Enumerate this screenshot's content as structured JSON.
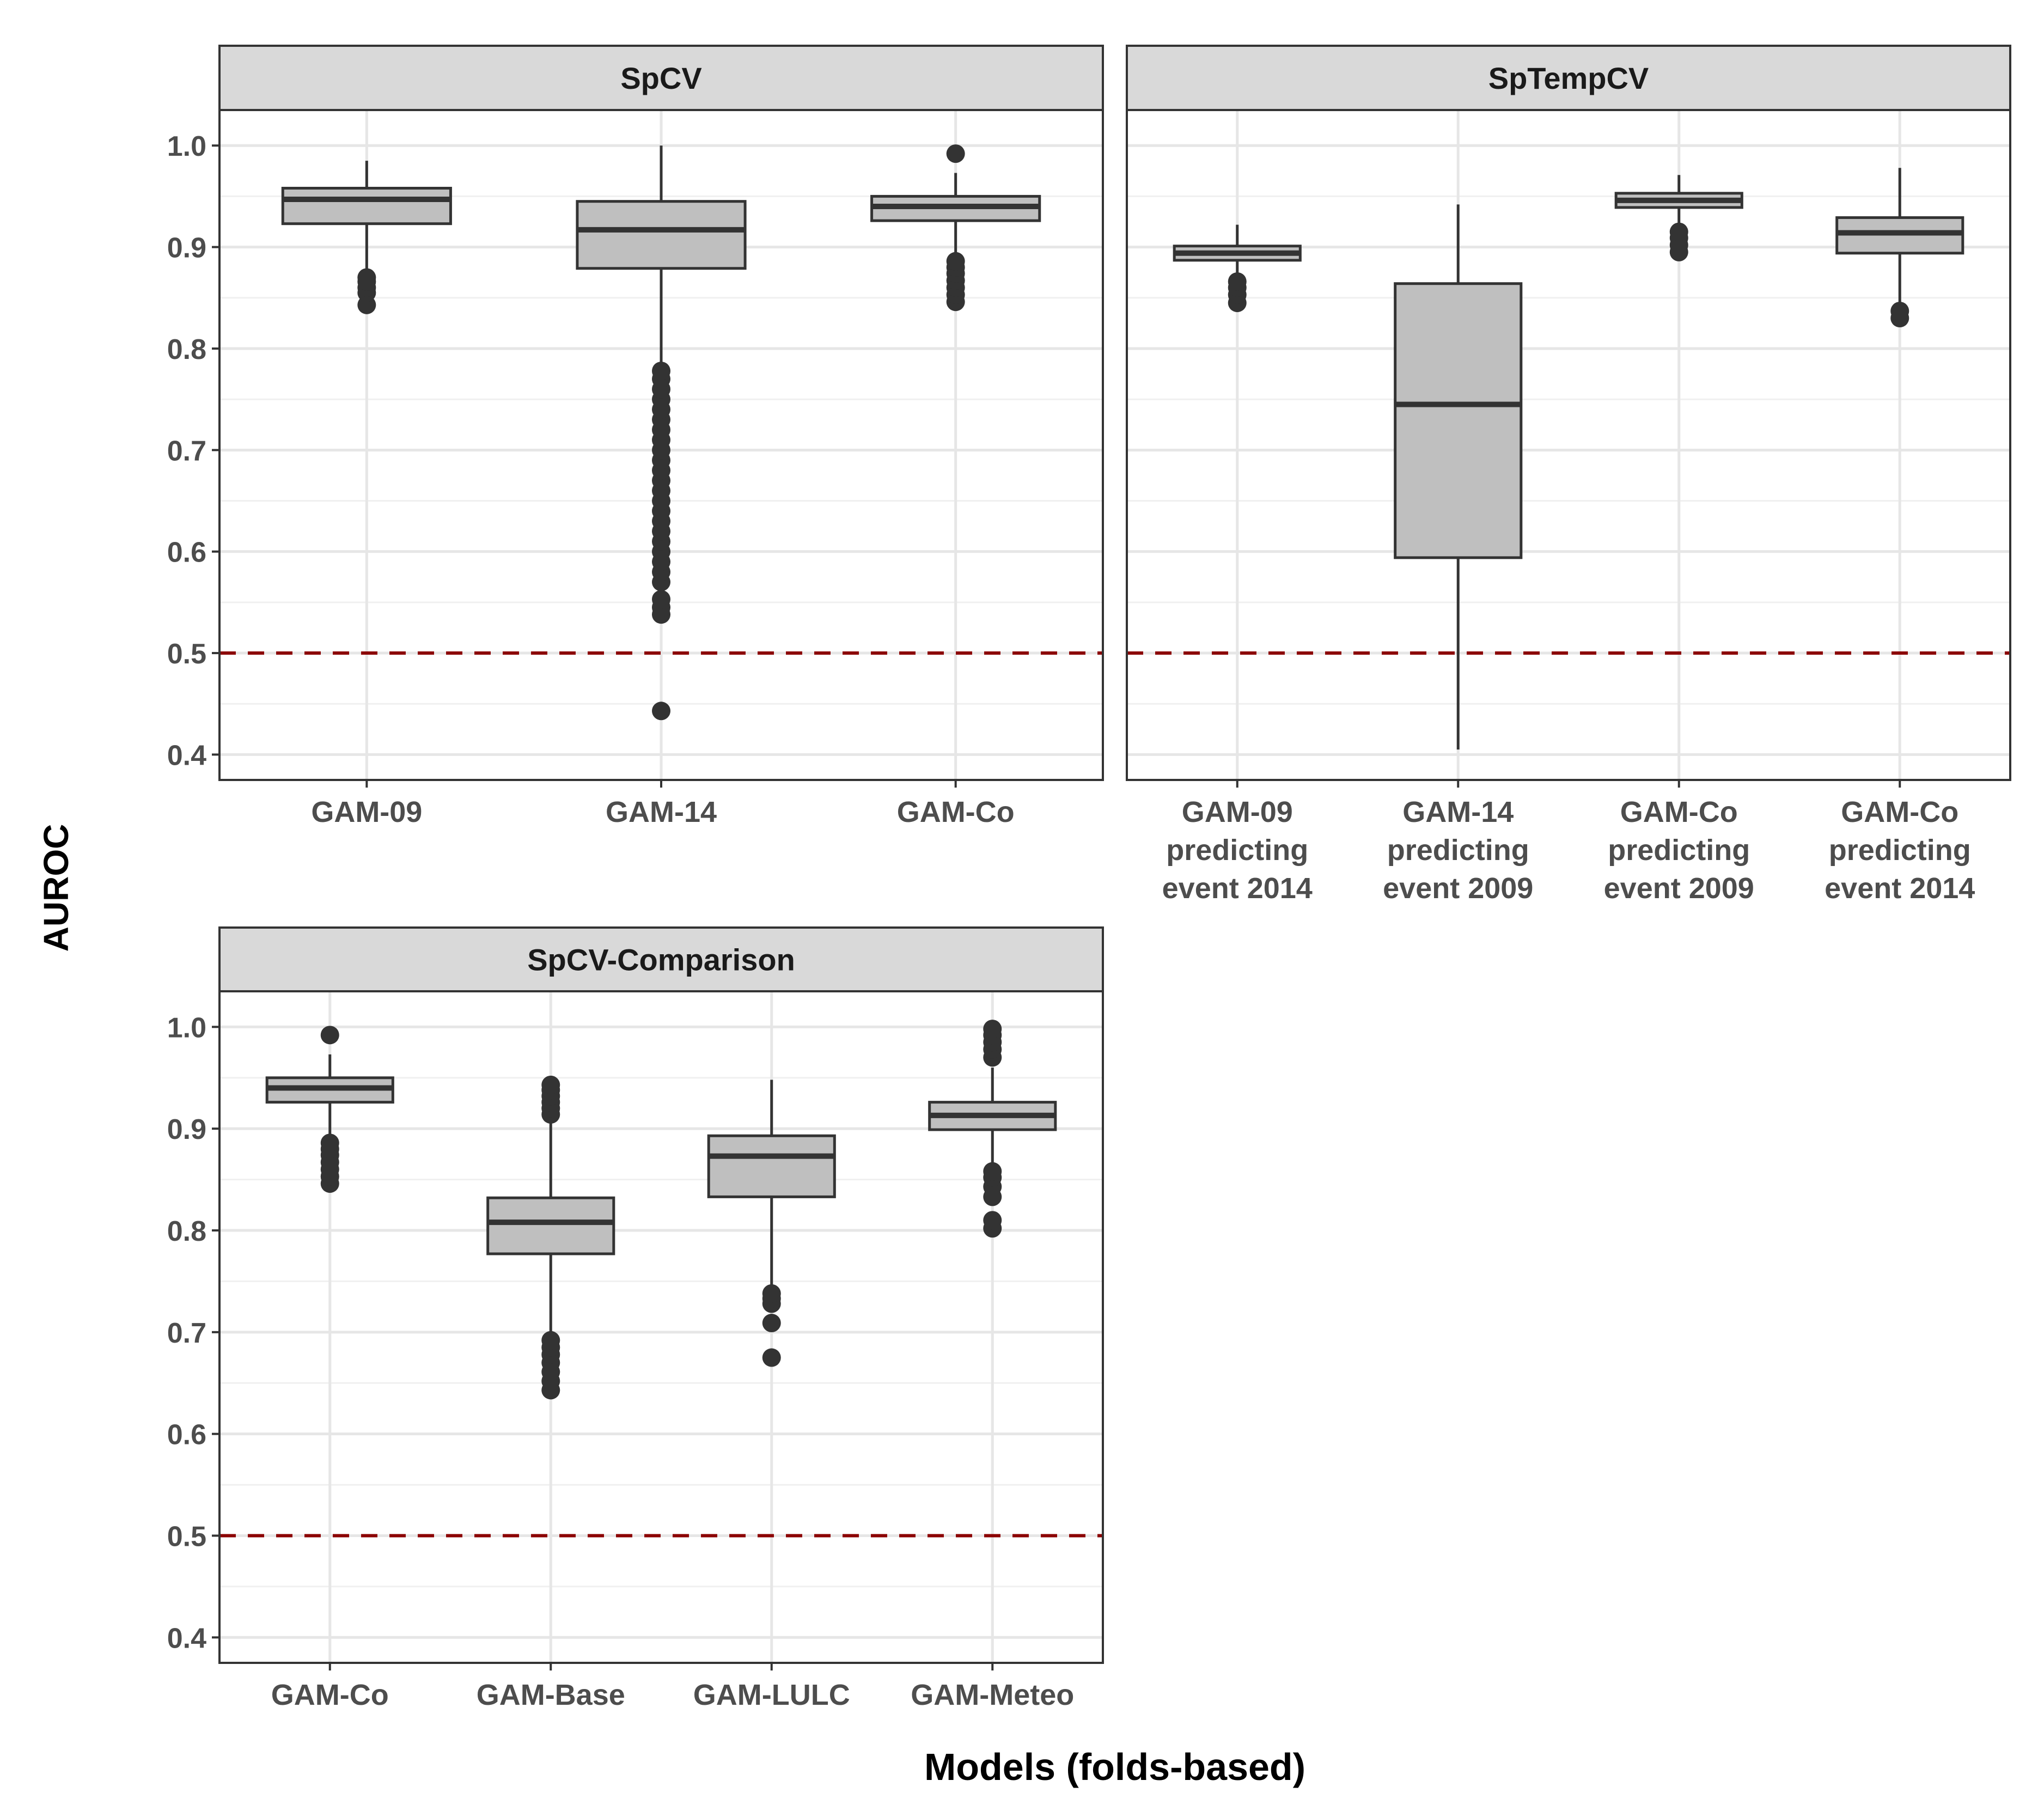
{
  "chart_data": {
    "type": "boxplot",
    "ylabel": "AUROC",
    "xlabel": "Models (folds-based)",
    "ylim": [
      0.375,
      1.035
    ],
    "y_ticks": [
      "0.4",
      "0.5",
      "0.6",
      "0.7",
      "0.8",
      "0.9",
      "1.0"
    ],
    "reference_line": {
      "y": 0.5,
      "style": "dashed",
      "color": "#8b0000"
    },
    "facets": [
      {
        "title": "SpCV",
        "categories": [
          [
            "GAM-09"
          ],
          [
            "GAM-14"
          ],
          [
            "GAM-Co"
          ]
        ],
        "boxes": [
          {
            "q1": 0.923,
            "median": 0.947,
            "q3": 0.958,
            "whisker_low": 0.875,
            "whisker_high": 0.985,
            "outliers": [
              0.843,
              0.855,
              0.86,
              0.866,
              0.87
            ]
          },
          {
            "q1": 0.879,
            "median": 0.917,
            "q3": 0.945,
            "whisker_low": 0.785,
            "whisker_high": 1.0,
            "outliers": [
              0.443,
              0.538,
              0.545,
              0.553,
              0.57,
              0.58,
              0.59,
              0.6,
              0.61,
              0.62,
              0.63,
              0.64,
              0.65,
              0.66,
              0.67,
              0.68,
              0.69,
              0.7,
              0.71,
              0.72,
              0.73,
              0.74,
              0.75,
              0.76,
              0.77,
              0.778
            ]
          },
          {
            "q1": 0.926,
            "median": 0.94,
            "q3": 0.95,
            "whisker_low": 0.89,
            "whisker_high": 0.973,
            "outliers": [
              0.846,
              0.853,
              0.86,
              0.867,
              0.874,
              0.88,
              0.886,
              0.992
            ]
          }
        ]
      },
      {
        "title": "SpTempCV",
        "categories": [
          [
            "GAM-09",
            "predicting",
            "event 2014"
          ],
          [
            "GAM-14",
            "predicting",
            "event 2009"
          ],
          [
            "GAM-Co",
            "predicting",
            "event 2009"
          ],
          [
            "GAM-Co",
            "predicting",
            "event 2014"
          ]
        ],
        "boxes": [
          {
            "q1": 0.887,
            "median": 0.894,
            "q3": 0.901,
            "whisker_low": 0.868,
            "whisker_high": 0.922,
            "outliers": [
              0.845,
              0.853,
              0.86,
              0.866
            ]
          },
          {
            "q1": 0.594,
            "median": 0.745,
            "q3": 0.864,
            "whisker_low": 0.405,
            "whisker_high": 0.942,
            "outliers": []
          },
          {
            "q1": 0.939,
            "median": 0.946,
            "q3": 0.953,
            "whisker_low": 0.918,
            "whisker_high": 0.971,
            "outliers": [
              0.895,
              0.902,
              0.909,
              0.915
            ]
          },
          {
            "q1": 0.894,
            "median": 0.914,
            "q3": 0.929,
            "whisker_low": 0.842,
            "whisker_high": 0.978,
            "outliers": [
              0.83,
              0.837
            ]
          }
        ]
      },
      {
        "title": "SpCV-Comparison",
        "categories": [
          [
            "GAM-Co"
          ],
          [
            "GAM-Base"
          ],
          [
            "GAM-LULC"
          ],
          [
            "GAM-Meteo"
          ]
        ],
        "boxes": [
          {
            "q1": 0.926,
            "median": 0.94,
            "q3": 0.95,
            "whisker_low": 0.89,
            "whisker_high": 0.973,
            "outliers": [
              0.846,
              0.853,
              0.86,
              0.867,
              0.874,
              0.88,
              0.886,
              0.992
            ]
          },
          {
            "q1": 0.777,
            "median": 0.808,
            "q3": 0.832,
            "whisker_low": 0.7,
            "whisker_high": 0.91,
            "outliers": [
              0.643,
              0.652,
              0.661,
              0.67,
              0.678,
              0.685,
              0.692,
              0.914,
              0.92,
              0.926,
              0.932,
              0.938,
              0.943
            ]
          },
          {
            "q1": 0.833,
            "median": 0.873,
            "q3": 0.893,
            "whisker_low": 0.745,
            "whisker_high": 0.948,
            "outliers": [
              0.675,
              0.709,
              0.728,
              0.733,
              0.738
            ]
          },
          {
            "q1": 0.899,
            "median": 0.913,
            "q3": 0.926,
            "whisker_low": 0.865,
            "whisker_high": 0.96,
            "outliers": [
              0.802,
              0.81,
              0.833,
              0.843,
              0.852,
              0.858,
              0.97,
              0.978,
              0.985,
              0.992,
              0.998
            ]
          }
        ]
      }
    ]
  }
}
